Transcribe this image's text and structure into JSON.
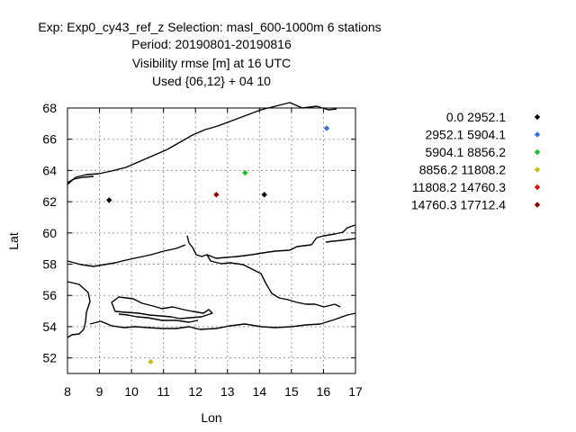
{
  "chart_data": {
    "type": "scatter",
    "title_lines": [
      "Exp: Exp0_cy43_ref_z   Selection: masl_600-1000m       6 stations",
      "Period: 20190801-20190816",
      "Visibility rmse [m] at  16 UTC",
      "Used {06,12} + 04 10"
    ],
    "xlabel": "Lon",
    "ylabel": "Lat",
    "xlim": [
      8,
      17
    ],
    "ylim": [
      51,
      68
    ],
    "xticks": [
      8,
      9,
      10,
      11,
      12,
      13,
      14,
      15,
      16,
      17
    ],
    "yticks": [
      52,
      54,
      56,
      58,
      60,
      62,
      64,
      66,
      68
    ],
    "grid": true,
    "legend_position": "right",
    "legend": [
      {
        "label": "0.0 2952.1",
        "color": "#000000"
      },
      {
        "label": "2952.1 5904.1",
        "color": "#3a6fd8"
      },
      {
        "label": "5904.1 8856.2",
        "color": "#1fbf1f"
      },
      {
        "label": "8856.2 11808.2",
        "color": "#c8c01a"
      },
      {
        "label": "11808.2 14760.3",
        "color": "#e01010"
      },
      {
        "label": "14760.3 17712.4",
        "color": "#8b0000"
      }
    ],
    "points": [
      {
        "lon": 9.3,
        "lat": 62.1,
        "class": 0
      },
      {
        "lon": 14.15,
        "lat": 62.45,
        "class": 0
      },
      {
        "lon": 16.1,
        "lat": 66.7,
        "class": 1
      },
      {
        "lon": 13.55,
        "lat": 63.85,
        "class": 2
      },
      {
        "lon": 10.6,
        "lat": 51.75,
        "class": 3
      },
      {
        "lon": 12.65,
        "lat": 62.45,
        "class": 5
      }
    ]
  }
}
